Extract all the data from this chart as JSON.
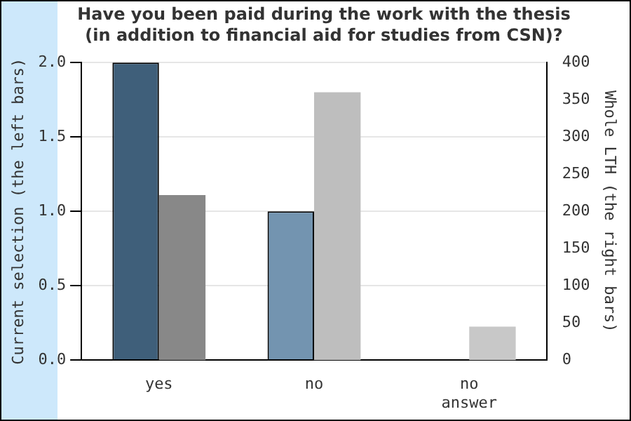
{
  "chart_data": {
    "type": "bar",
    "title": "Have you been paid during the work with the thesis (in addition to financial aid for studies from CSN)?",
    "ylabel": "Current selection (the left bars)",
    "y2label": "Whole LTH (the right bars)",
    "categories": [
      "yes",
      "no",
      "no answer"
    ],
    "series": [
      {
        "colors": [
          "#3f5f7a",
          "#7394b0",
          "#7394b0"
        ],
        "values": [
          2,
          1,
          0
        ]
      },
      {
        "colors": [
          "#888888",
          "#bebebe",
          "#c8c8c8"
        ],
        "values": [
          222,
          360,
          45
        ],
        "axis": "y2"
      }
    ],
    "ylim": [
      0,
      2
    ],
    "yticks": [
      {
        "value": 0,
        "label": "0.0"
      },
      {
        "value": 0.5,
        "label": "0.5"
      },
      {
        "value": 1,
        "label": "1.0"
      },
      {
        "value": 1.5,
        "label": "1.5"
      },
      {
        "value": 2,
        "label": "2.0"
      }
    ],
    "y2lim": [
      0,
      400
    ],
    "y2ticks": [
      0,
      50,
      100,
      150,
      200,
      250,
      300,
      350,
      400
    ],
    "grid": "y",
    "legend": false
  }
}
